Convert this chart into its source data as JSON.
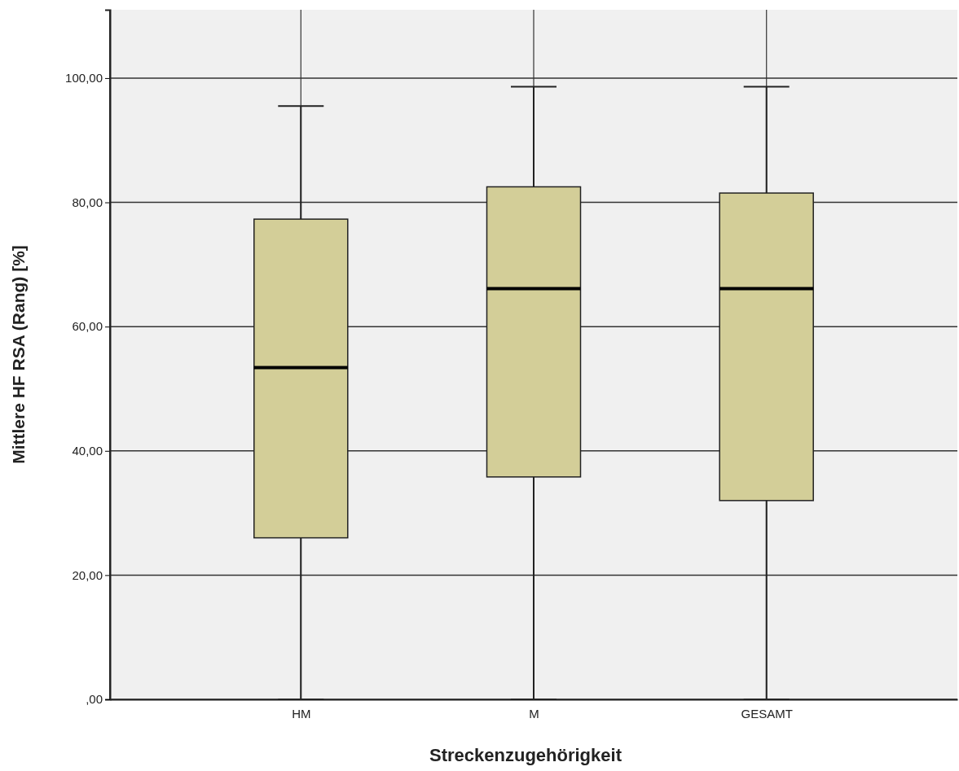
{
  "chart_data": {
    "type": "box",
    "xlabel": "Streckenzugehörigkeit",
    "ylabel": "Mittlere HF RSA (Rang) [%]",
    "categories": [
      "HM",
      "M",
      "GESAMT"
    ],
    "color": "#d3ce98",
    "boxes": [
      {
        "low": 0,
        "q1": 26.0,
        "median": 53.4,
        "q3": 77.3,
        "high": 95.5
      },
      {
        "low": 0,
        "q1": 35.8,
        "median": 66.1,
        "q3": 82.5,
        "high": 98.6
      },
      {
        "low": 0,
        "q1": 32.0,
        "median": 66.1,
        "q3": 81.5,
        "high": 98.6
      }
    ],
    "ylim": [
      0,
      111
    ],
    "yticks": [
      {
        "value": 0,
        "label": ",00"
      },
      {
        "value": 20,
        "label": "20,00"
      },
      {
        "value": 40,
        "label": "40,00"
      },
      {
        "value": 60,
        "label": "60,00"
      },
      {
        "value": 80,
        "label": "80,00"
      },
      {
        "value": 100,
        "label": "100,00"
      }
    ],
    "grid": true
  }
}
